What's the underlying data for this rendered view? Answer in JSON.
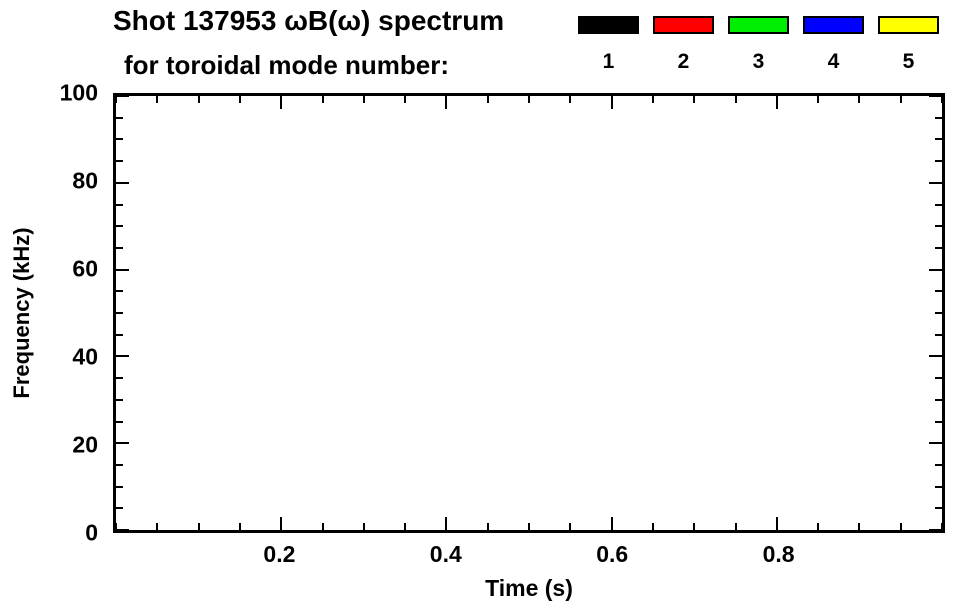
{
  "chart_data": {
    "type": "heatmap",
    "title_line1": "Shot 137953 ωB(ω) spectrum",
    "title_line2": "for toroidal mode number:",
    "xlabel": "Time (s)",
    "ylabel": "Frequency (kHz)",
    "xlim": [
      0,
      1.0
    ],
    "ylim": [
      0,
      100
    ],
    "x_ticks": [
      {
        "value": 0.2,
        "label": "0.2"
      },
      {
        "value": 0.4,
        "label": "0.4"
      },
      {
        "value": 0.6,
        "label": "0.6"
      },
      {
        "value": 0.8,
        "label": "0.8"
      }
    ],
    "y_ticks": [
      {
        "value": 0,
        "label": "0"
      },
      {
        "value": 20,
        "label": "20"
      },
      {
        "value": 40,
        "label": "40"
      },
      {
        "value": 60,
        "label": "60"
      },
      {
        "value": 80,
        "label": "80"
      },
      {
        "value": 100,
        "label": "100"
      }
    ],
    "x_minor_step": 0.05,
    "y_minor_step": 5,
    "grid": false,
    "legend": {
      "position": "top-right",
      "entries": [
        {
          "label": "1",
          "color": "#000000"
        },
        {
          "label": "2",
          "color": "#ff0000"
        },
        {
          "label": "3",
          "color": "#00ee00"
        },
        {
          "label": "4",
          "color": "#0000ff"
        },
        {
          "label": "5",
          "color": "#ffff00"
        }
      ]
    },
    "series": []
  },
  "colors": {
    "background": "#ffffff",
    "foreground": "#000000"
  }
}
